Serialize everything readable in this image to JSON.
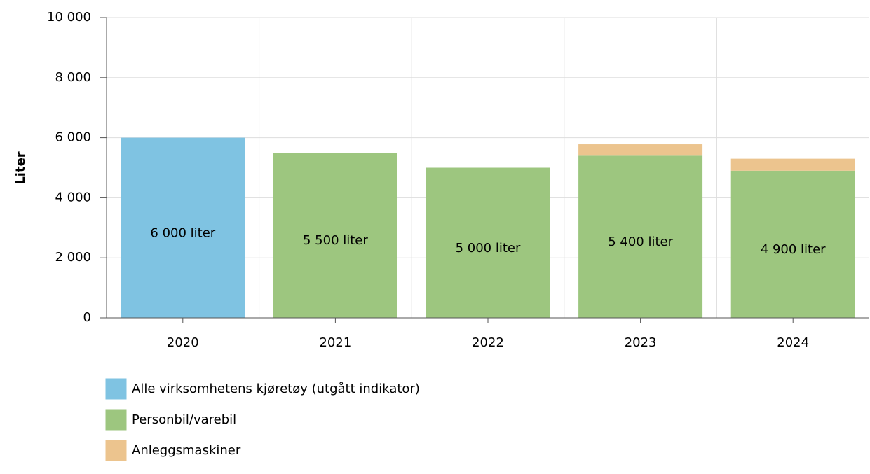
{
  "chart_data": {
    "type": "bar",
    "stacked": true,
    "y_label": "Liter",
    "categories": [
      "2020",
      "2021",
      "2022",
      "2023",
      "2024"
    ],
    "series": [
      {
        "name": "Alle virksomhetens kjøretøy (utgått indikator)",
        "color": "#7fc3e2",
        "values": [
          6000,
          null,
          null,
          null,
          null
        ],
        "value_labels": [
          "6 000 liter",
          null,
          null,
          null,
          null
        ]
      },
      {
        "name": "Personbil/varebil",
        "color": "#9dc67f",
        "values": [
          null,
          5500,
          5000,
          5400,
          4900
        ],
        "value_labels": [
          null,
          "5 500 liter",
          "5 000 liter",
          "5 400 liter",
          "4 900 liter"
        ]
      },
      {
        "name": "Anleggsmaskiner",
        "color": "#ecc48e",
        "values": [
          null,
          null,
          null,
          380,
          400
        ]
      }
    ],
    "ylim": [
      0,
      10000
    ],
    "yticks": [
      0,
      {
        "value": 2000,
        "label": "2 000"
      },
      {
        "value": 4000,
        "label": "4 000"
      },
      {
        "value": 6000,
        "label": "6 000"
      },
      {
        "value": 8000,
        "label": "8 000"
      },
      {
        "value": 10000,
        "label": "10 000"
      }
    ],
    "grid": true
  }
}
